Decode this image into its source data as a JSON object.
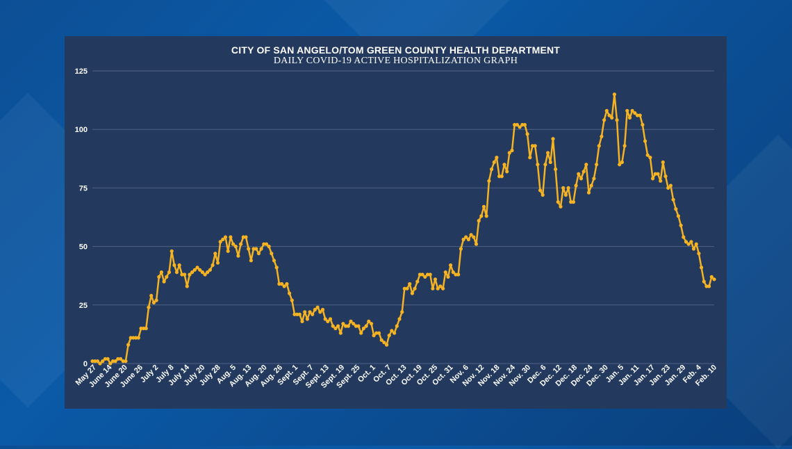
{
  "chart_data": {
    "type": "line",
    "title": "CITY OF SAN ANGELO/TOM GREEN COUNTY HEALTH DEPARTMENT",
    "subtitle": "DAILY COVID-19 ACTIVE HOSPITALIZATION GRAPH",
    "xlabel": "",
    "ylabel": "",
    "ylim": [
      0,
      125
    ],
    "yticks": [
      0,
      25,
      50,
      75,
      100,
      125
    ],
    "grid": "horizontal",
    "line_color": "#f5b323",
    "x_tick_labels": [
      "May 27",
      "June 14",
      "June 20",
      "June 26",
      "July 2",
      "July 8",
      "July 14",
      "July 20",
      "July 28",
      "Aug. 5",
      "Aug. 13",
      "Aug. 20",
      "Aug. 26",
      "Sept. 1",
      "Sept. 7",
      "Sept. 13",
      "Sept. 19",
      "Sept. 25",
      "Oct. 1",
      "Oct. 7",
      "Oct. 13",
      "Oct. 19",
      "Oct. 25",
      "Oct. 31",
      "Nov. 6",
      "Nov. 12",
      "Nov. 18",
      "Nov. 24",
      "Nov. 30",
      "Dec. 6",
      "Dec. 12",
      "Dec. 18",
      "Dec. 24",
      "Dec. 30",
      "Jan. 5",
      "Jan. 11",
      "Jan. 17",
      "Jan. 23",
      "Jan. 29",
      "Feb. 4",
      "Feb. 10"
    ],
    "values": [
      1,
      1,
      1,
      0,
      1,
      2,
      2,
      0,
      1,
      1,
      2,
      2,
      1,
      1,
      8,
      11,
      11,
      11,
      11,
      15,
      15,
      15,
      24,
      29,
      26,
      27,
      37,
      39,
      35,
      37,
      39,
      48,
      42,
      39,
      42,
      38,
      38,
      33,
      38,
      39,
      40,
      41,
      40,
      39,
      38,
      39,
      40,
      42,
      47,
      43,
      52,
      53,
      54,
      48,
      54,
      51,
      50,
      46,
      51,
      54,
      54,
      49,
      44,
      49,
      49,
      47,
      49,
      51,
      51,
      50,
      47,
      44,
      41,
      34,
      34,
      33,
      34,
      30,
      27,
      21,
      21,
      21,
      18,
      22,
      19,
      22,
      21,
      23,
      24,
      22,
      23,
      19,
      18,
      19,
      16,
      15,
      16,
      13,
      17,
      16,
      16,
      18,
      17,
      16,
      16,
      13,
      15,
      16,
      18,
      17,
      12,
      13,
      13,
      10,
      9,
      8,
      12,
      14,
      13,
      16,
      19,
      22,
      32,
      32,
      34,
      30,
      32,
      35,
      38,
      38,
      37,
      38,
      38,
      32,
      36,
      32,
      33,
      32,
      39,
      37,
      42,
      39,
      38,
      38,
      49,
      53,
      54,
      53,
      55,
      54,
      51,
      61,
      63,
      67,
      63,
      78,
      83,
      86,
      88,
      80,
      80,
      85,
      82,
      90,
      91,
      102,
      102,
      101,
      102,
      102,
      98,
      88,
      93,
      93,
      85,
      74,
      72,
      85,
      90,
      86,
      96,
      83,
      69,
      67,
      75,
      72,
      75,
      69,
      69,
      76,
      81,
      79,
      82,
      85,
      73,
      76,
      79,
      85,
      93,
      97,
      104,
      108,
      106,
      105,
      115,
      104,
      85,
      86,
      93,
      108,
      105,
      108,
      107,
      106,
      106,
      102,
      95,
      89,
      88,
      79,
      81,
      81,
      78,
      86,
      80,
      75,
      76,
      70,
      66,
      63,
      59,
      54,
      52,
      51,
      52,
      49,
      51,
      47,
      41,
      35,
      33,
      33,
      37,
      36
    ]
  }
}
